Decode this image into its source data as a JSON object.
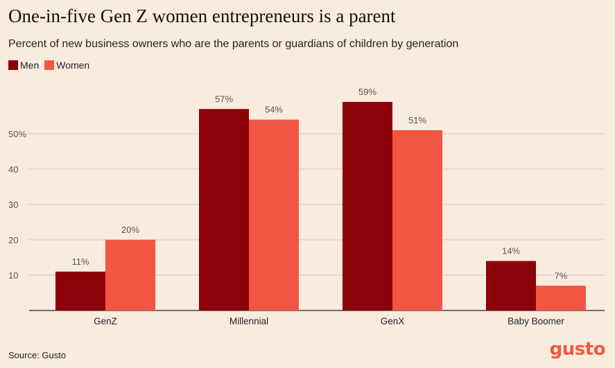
{
  "title": "One-in-five Gen Z women entrepreneurs is a parent",
  "subtitle": "Percent of new business owners who are the parents or guardians of children by generation",
  "source": "Source: Gusto",
  "logo": "gusto",
  "colors": {
    "men": "#8b0208",
    "women": "#f15643",
    "background": "#f9ecdf",
    "grid": "#cfc7bf",
    "logo": "#f15a40"
  },
  "chart_data": {
    "type": "bar",
    "categories": [
      "GenZ",
      "Millennial",
      "GenX",
      "Baby Boomer"
    ],
    "series": [
      {
        "name": "Men",
        "values": [
          11,
          57,
          59,
          14
        ],
        "labels": [
          "11%",
          "57%",
          "59%",
          "14%"
        ]
      },
      {
        "name": "Women",
        "values": [
          20,
          54,
          51,
          7
        ],
        "labels": [
          "20%",
          "54%",
          "51%",
          "7%"
        ]
      }
    ],
    "yticks": [
      10,
      20,
      30,
      40,
      50
    ],
    "ytick_labels": [
      "10",
      "20",
      "30",
      "40",
      "50%"
    ],
    "ylim": [
      0,
      60
    ],
    "grid": true,
    "legend_position": "top-left"
  }
}
